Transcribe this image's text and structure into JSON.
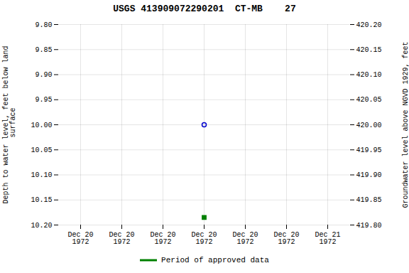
{
  "chart_data": {
    "type": "scatter",
    "title": "USGS 413909072290201  CT-MB    27",
    "ylabel": "Depth to water level, feet below land\n surface",
    "y2label": "Groundwater level above NGVD 1929, feet",
    "categories": [
      "Dec 20\n1972",
      "Dec 20\n1972",
      "Dec 20\n1972",
      "Dec 20\n1972",
      "Dec 20\n1972",
      "Dec 20\n1972",
      "Dec 21\n1972"
    ],
    "series": [
      {
        "color": "#0000cc",
        "marker": "open_circle",
        "values": [
          null,
          null,
          null,
          10.0,
          null,
          null,
          null
        ]
      },
      {
        "name": "Period of approved data",
        "color": "#008000",
        "marker": "square",
        "values": [
          null,
          null,
          null,
          10.185,
          null,
          null,
          null
        ]
      }
    ],
    "ylim": [
      10.2,
      9.8
    ],
    "yticks": [
      {
        "value": 9.8,
        "label": "9.80"
      },
      9.85,
      {
        "value": 9.9,
        "label": "9.90"
      },
      9.95,
      {
        "value": 10.0,
        "label": "10.00"
      },
      10.05,
      {
        "value": 10.1,
        "label": "10.10"
      },
      10.15,
      {
        "value": 10.2,
        "label": "10.20"
      }
    ],
    "y2lim": [
      419.8,
      420.2
    ],
    "y2ticks": [
      {
        "value": 419.8,
        "label": "419.80"
      },
      419.85,
      {
        "value": 419.9,
        "label": "419.90"
      },
      419.95,
      {
        "value": 420.0,
        "label": "420.00"
      },
      420.05,
      {
        "value": 420.1,
        "label": "420.10"
      },
      420.15,
      {
        "value": 420.2,
        "label": "420.20"
      }
    ],
    "grid": true,
    "legend": "bottom"
  }
}
